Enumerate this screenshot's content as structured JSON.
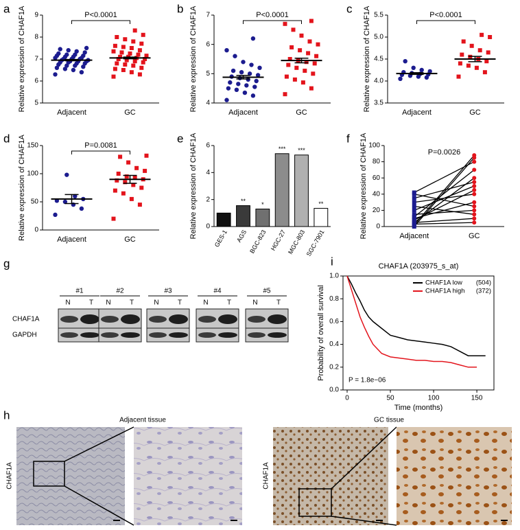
{
  "chart_data": [
    {
      "type": "dotplot",
      "label": "a",
      "ylabel": "Relative expression of CHAF1A",
      "annotation": "P<0.0001",
      "categories": [
        "Adjacent",
        "GC"
      ],
      "ylim": [
        5,
        9
      ],
      "yticks": [
        5,
        6,
        7,
        8,
        9
      ],
      "groups": [
        {
          "color": "#1c1c8f",
          "marker": "circle",
          "mean": 6.95,
          "sem": 0.03,
          "values": [
            6.3,
            6.4,
            6.5,
            6.55,
            6.6,
            6.65,
            6.7,
            6.7,
            6.75,
            6.8,
            6.8,
            6.85,
            6.85,
            6.9,
            6.9,
            6.9,
            6.95,
            6.95,
            7.0,
            7.0,
            7.0,
            7.05,
            7.05,
            7.1,
            7.1,
            7.15,
            7.15,
            7.2,
            7.2,
            7.25,
            7.3,
            7.35,
            7.4,
            7.45,
            7.5
          ]
        },
        {
          "color": "#e3141c",
          "marker": "square",
          "mean": 7.05,
          "sem": 0.04,
          "values": [
            6.2,
            6.3,
            6.4,
            6.5,
            6.55,
            6.6,
            6.7,
            6.75,
            6.8,
            6.85,
            6.9,
            6.95,
            7.0,
            7.0,
            7.05,
            7.1,
            7.1,
            7.15,
            7.2,
            7.25,
            7.3,
            7.35,
            7.4,
            7.5,
            7.55,
            7.6,
            7.7,
            7.8,
            7.9,
            8.0,
            8.1,
            8.3
          ]
        }
      ]
    },
    {
      "type": "dotplot",
      "label": "b",
      "ylabel": "Relative expression of CHAF1A",
      "annotation": "P<0.0001",
      "categories": [
        "Adjacent",
        "GC"
      ],
      "ylim": [
        4,
        7
      ],
      "yticks": [
        4,
        5,
        6,
        7
      ],
      "groups": [
        {
          "color": "#1c1c8f",
          "marker": "circle",
          "mean": 4.88,
          "sem": 0.06,
          "values": [
            4.1,
            4.25,
            4.35,
            4.45,
            4.5,
            4.55,
            4.6,
            4.65,
            4.7,
            4.75,
            4.8,
            4.85,
            4.9,
            4.95,
            5.0,
            5.05,
            5.1,
            5.2,
            5.3,
            5.4,
            5.6,
            5.8,
            6.2
          ]
        },
        {
          "color": "#e3141c",
          "marker": "square",
          "mean": 5.45,
          "sem": 0.08,
          "values": [
            4.3,
            4.5,
            4.7,
            4.8,
            4.9,
            5.0,
            5.1,
            5.2,
            5.3,
            5.35,
            5.4,
            5.45,
            5.5,
            5.6,
            5.7,
            5.8,
            5.9,
            6.0,
            6.1,
            6.3,
            6.5,
            6.7,
            6.8
          ]
        }
      ]
    },
    {
      "type": "dotplot",
      "label": "c",
      "ylabel": "Relative expression of CHAF1A",
      "annotation": "P<0.0001",
      "categories": [
        "Adjacent",
        "GC"
      ],
      "ylim": [
        3.5,
        5.5
      ],
      "yticks": [
        {
          "value": 3.5,
          "label": "3.5"
        },
        {
          "value": 4,
          "label": "4.0"
        },
        {
          "value": 4.5,
          "label": "4.5"
        },
        {
          "value": 5,
          "label": "5.0"
        },
        {
          "value": 5.5,
          "label": "5.5"
        }
      ],
      "groups": [
        {
          "color": "#1c1c8f",
          "marker": "circle",
          "mean": 4.17,
          "sem": 0.02,
          "values": [
            4.05,
            4.08,
            4.1,
            4.12,
            4.14,
            4.15,
            4.16,
            4.18,
            4.2,
            4.22,
            4.25,
            4.3,
            4.45
          ]
        },
        {
          "color": "#e3141c",
          "marker": "square",
          "mean": 4.5,
          "sem": 0.06,
          "values": [
            4.1,
            4.2,
            4.3,
            4.35,
            4.4,
            4.45,
            4.5,
            4.55,
            4.6,
            4.65,
            4.7,
            4.8,
            4.9,
            5.0,
            5.05
          ]
        }
      ]
    },
    {
      "type": "dotplot",
      "label": "d",
      "ylabel": "Relative expression of CHAF1A",
      "annotation": "P=0.0081",
      "categories": [
        "Adjacent",
        "GC"
      ],
      "ylim": [
        0,
        150
      ],
      "yticks": [
        0,
        50,
        100,
        150
      ],
      "groups": [
        {
          "color": "#1c1c8f",
          "marker": "circle",
          "mean": 55,
          "sem": 8,
          "values": [
            27,
            38,
            45,
            50,
            52,
            55,
            60,
            98
          ]
        },
        {
          "color": "#e3141c",
          "marker": "square",
          "mean": 90,
          "sem": 7,
          "values": [
            20,
            45,
            55,
            65,
            70,
            75,
            80,
            85,
            88,
            90,
            93,
            95,
            100,
            105,
            110,
            120,
            130,
            132
          ]
        }
      ]
    },
    {
      "type": "bar",
      "label": "e",
      "ylabel": "Relative expression of CHAF1A",
      "categories": [
        "GES-1",
        "AGS",
        "BGC-823",
        "HGC-27",
        "MGC-803",
        "SGC-7901"
      ],
      "values": [
        1.0,
        1.55,
        1.3,
        5.4,
        5.3,
        1.35
      ],
      "colors": [
        "#111111",
        "#3a3a3a",
        "#707070",
        "#8c8c8c",
        "#b0b0b0",
        "#ffffff"
      ],
      "sig_labels": [
        null,
        "**",
        "*",
        "***",
        "***",
        "**"
      ],
      "ylim": [
        0,
        6
      ],
      "yticks": [
        0,
        2,
        4,
        6
      ]
    },
    {
      "type": "paired",
      "label": "f",
      "ylabel": "Relative expression of CHAF1A",
      "annotation": "P=0.0026",
      "categories": [
        "Adjacent",
        "GC"
      ],
      "ylim": [
        0,
        100
      ],
      "yticks": [
        0,
        20,
        40,
        60,
        80,
        100
      ],
      "colors": [
        "#1c1c8f",
        "#e3141c"
      ],
      "adjacent": [
        0,
        2,
        3,
        5,
        5,
        8,
        10,
        12,
        15,
        20,
        25,
        30,
        35,
        40,
        42
      ],
      "gc": [
        85,
        88,
        5,
        60,
        10,
        45,
        30,
        70,
        20,
        50,
        15,
        40,
        55,
        25,
        80
      ]
    },
    {
      "type": "line",
      "label": "i",
      "title": "CHAF1A (203975_s_at)",
      "xlabel": "Time (months)",
      "ylabel": "Probability of overall survival",
      "annotation": "P = 1.8e−06",
      "xlim": [
        0,
        165
      ],
      "xticks": [
        0,
        50,
        100,
        150
      ],
      "ylim": [
        0,
        1
      ],
      "yticks": [
        {
          "value": 0,
          "label": "0.0"
        },
        {
          "value": 0.2,
          "label": "0.2"
        },
        {
          "value": 0.4,
          "label": "0.4"
        },
        {
          "value": 0.6,
          "label": "0.6"
        },
        {
          "value": 0.8,
          "label": "0.8"
        },
        {
          "value": 1,
          "label": "1.0"
        }
      ],
      "series": [
        {
          "name": "CHAF1A low",
          "count": "(504)",
          "color": "#000000",
          "x": [
            0,
            5,
            10,
            15,
            20,
            25,
            30,
            40,
            50,
            60,
            70,
            80,
            90,
            100,
            110,
            120,
            130,
            140,
            150,
            160
          ],
          "values": [
            1,
            0.93,
            0.85,
            0.78,
            0.7,
            0.64,
            0.6,
            0.54,
            0.48,
            0.46,
            0.44,
            0.43,
            0.42,
            0.41,
            0.4,
            0.38,
            0.34,
            0.3,
            0.3,
            0.3
          ]
        },
        {
          "name": "CHAF1A high",
          "count": "(372)",
          "color": "#e3141c",
          "x": [
            0,
            5,
            10,
            15,
            20,
            25,
            30,
            40,
            50,
            60,
            70,
            80,
            90,
            100,
            110,
            120,
            130,
            140,
            150
          ],
          "values": [
            1,
            0.88,
            0.76,
            0.64,
            0.55,
            0.47,
            0.4,
            0.32,
            0.29,
            0.28,
            0.27,
            0.26,
            0.26,
            0.25,
            0.25,
            0.24,
            0.22,
            0.2,
            0.2
          ]
        }
      ]
    }
  ],
  "blot": {
    "label": "g",
    "samples": [
      "#1",
      "#2",
      "#3",
      "#4",
      "#5"
    ],
    "lanes": [
      "N",
      "T"
    ],
    "rows": [
      "CHAF1A",
      "GAPDH"
    ]
  },
  "histology": {
    "label": "h",
    "titles": [
      "Adjacent tissue",
      "GC tissue"
    ],
    "stain": [
      "CHAF1A",
      "CHAF1A"
    ]
  }
}
